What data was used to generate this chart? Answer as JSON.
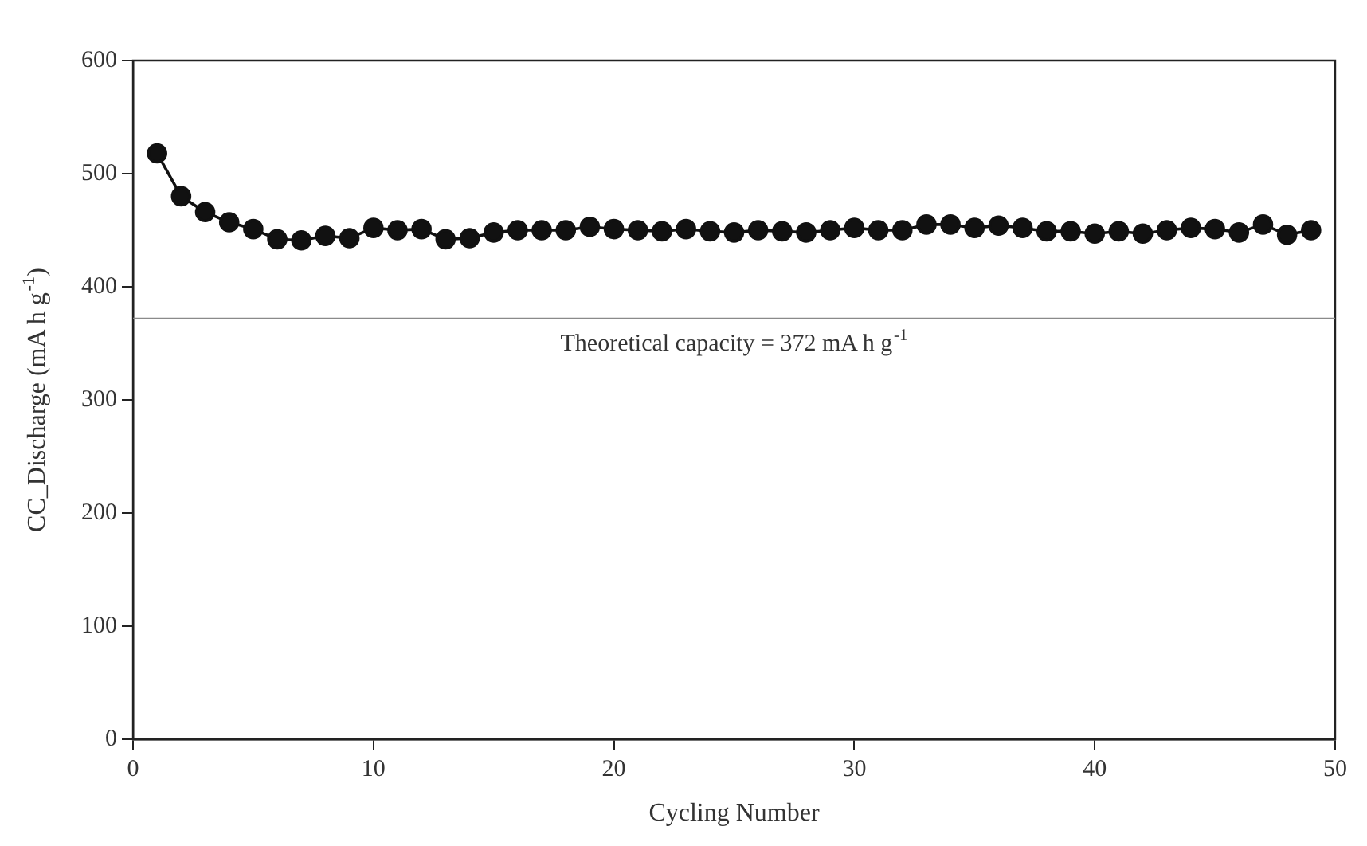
{
  "chart_data": {
    "type": "line",
    "xlabel": "Cycling Number",
    "ylabel": "CC_Discharge (mA h g$^{-1}$)",
    "x": [
      1,
      2,
      3,
      4,
      5,
      6,
      7,
      8,
      9,
      10,
      11,
      12,
      13,
      14,
      15,
      16,
      17,
      18,
      19,
      20,
      21,
      22,
      23,
      24,
      25,
      26,
      27,
      28,
      29,
      30,
      31,
      32,
      33,
      34,
      35,
      36,
      37,
      38,
      39,
      40,
      41,
      42,
      43,
      44,
      45,
      46,
      47,
      48,
      49
    ],
    "series": [
      {
        "color": "#111111",
        "values": [
          518,
          480,
          466,
          457,
          451,
          442,
          441,
          445,
          443,
          452,
          450,
          451,
          442,
          443,
          448,
          450,
          450,
          450,
          453,
          451,
          450,
          449,
          451,
          449,
          448,
          450,
          449,
          448,
          450,
          452,
          450,
          450,
          455,
          455,
          452,
          454,
          452,
          449,
          449,
          447,
          449,
          447,
          450,
          452,
          451,
          448,
          455,
          446,
          450
        ]
      }
    ],
    "xlim": [
      0,
      50
    ],
    "xticks": [
      0,
      10,
      20,
      30,
      40,
      50
    ],
    "ylim": [
      0,
      600
    ],
    "yticks": [
      0,
      100,
      200,
      300,
      400,
      500,
      600
    ],
    "ref_lines": [
      {
        "axis": "y",
        "value": 372,
        "label": "Theoretical capacity = 372 mA h g$^{-1}$",
        "color": "#8a8a8a"
      }
    ],
    "marker": "circle",
    "line_style": "solid",
    "grid": false,
    "legend": false
  }
}
